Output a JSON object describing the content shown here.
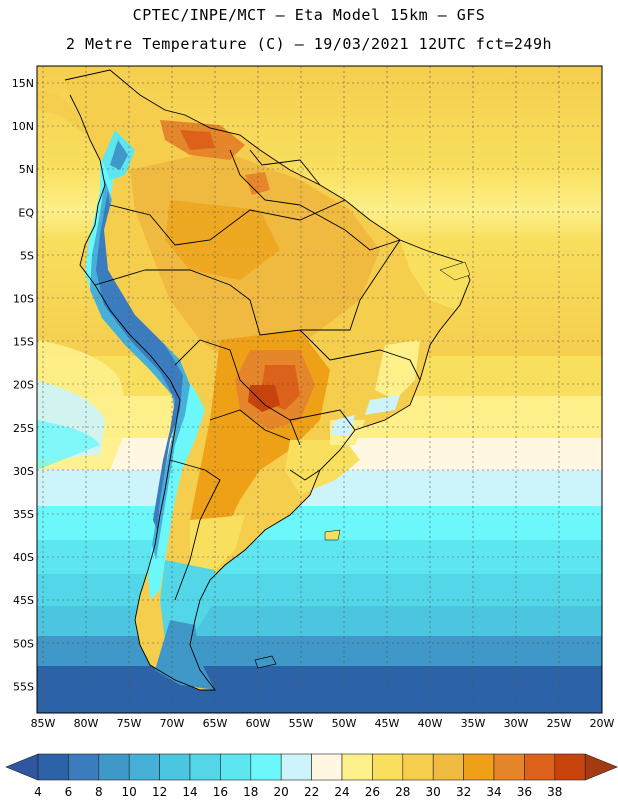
{
  "header": {
    "line1": "CPTEC/INPE/MCT –  Eta Model 15km – GFS",
    "line2": "2 Metre Temperature (C) – 19/03/2021 12UTC fct=249h"
  },
  "map": {
    "lat_labels": [
      "15N",
      "10N",
      "5N",
      "EQ",
      "5S",
      "10S",
      "15S",
      "20S",
      "25S",
      "30S",
      "35S",
      "40S",
      "45S",
      "50S",
      "55S"
    ],
    "lon_labels": [
      "85W",
      "80W",
      "75W",
      "70W",
      "65W",
      "60W",
      "55W",
      "50W",
      "45W",
      "40W",
      "35W",
      "30W",
      "25W",
      "20W"
    ]
  },
  "colorbar": {
    "labels": [
      "4",
      "6",
      "8",
      "10",
      "12",
      "14",
      "16",
      "18",
      "20",
      "22",
      "24",
      "26",
      "28",
      "30",
      "32",
      "34",
      "36",
      "38"
    ],
    "colors": [
      "#2c62a7",
      "#3a7cbd",
      "#3f98c8",
      "#46b0d8",
      "#4cc6e0",
      "#52d6e8",
      "#5de6f0",
      "#6cf8fb",
      "#cdf4fb",
      "#fff7e2",
      "#fdf08a",
      "#f9df5e",
      "#f5ce4e",
      "#f0b93f",
      "#eea117",
      "#e6862a",
      "#dc621b",
      "#c8420c"
    ],
    "low_arrow_color": "#2f57a0",
    "high_arrow_color": "#a43a10"
  }
}
